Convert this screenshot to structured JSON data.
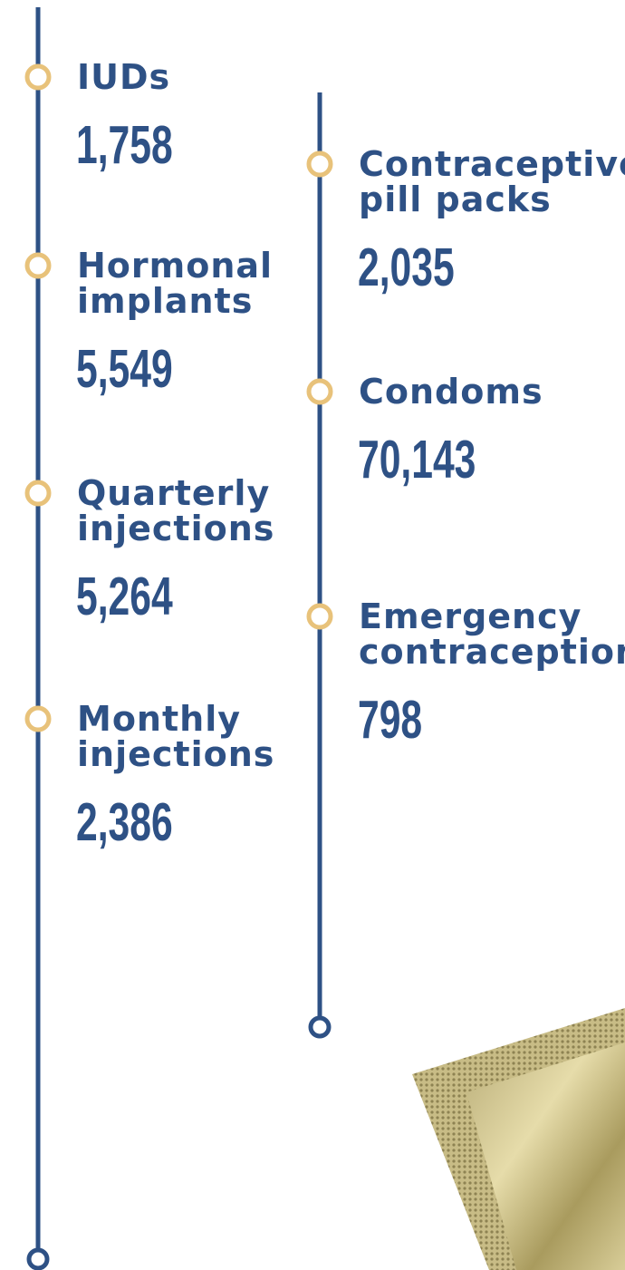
{
  "columns": [
    {
      "items": [
        {
          "label": [
            "IUDs"
          ],
          "value": "1,758"
        },
        {
          "label": [
            "Hormonal",
            "implants"
          ],
          "value": "5,549"
        },
        {
          "label": [
            "Quarterly",
            "injections"
          ],
          "value": "5,264"
        },
        {
          "label": [
            "Monthly",
            "injections"
          ],
          "value": "2,386"
        }
      ]
    },
    {
      "items": [
        {
          "label": [
            "Contraceptive",
            "pill packs"
          ],
          "value": "2,035"
        },
        {
          "label": [
            "Condoms"
          ],
          "value": "70,143"
        },
        {
          "label": [
            "Emergency",
            "contraception"
          ],
          "value": "798"
        }
      ]
    }
  ]
}
